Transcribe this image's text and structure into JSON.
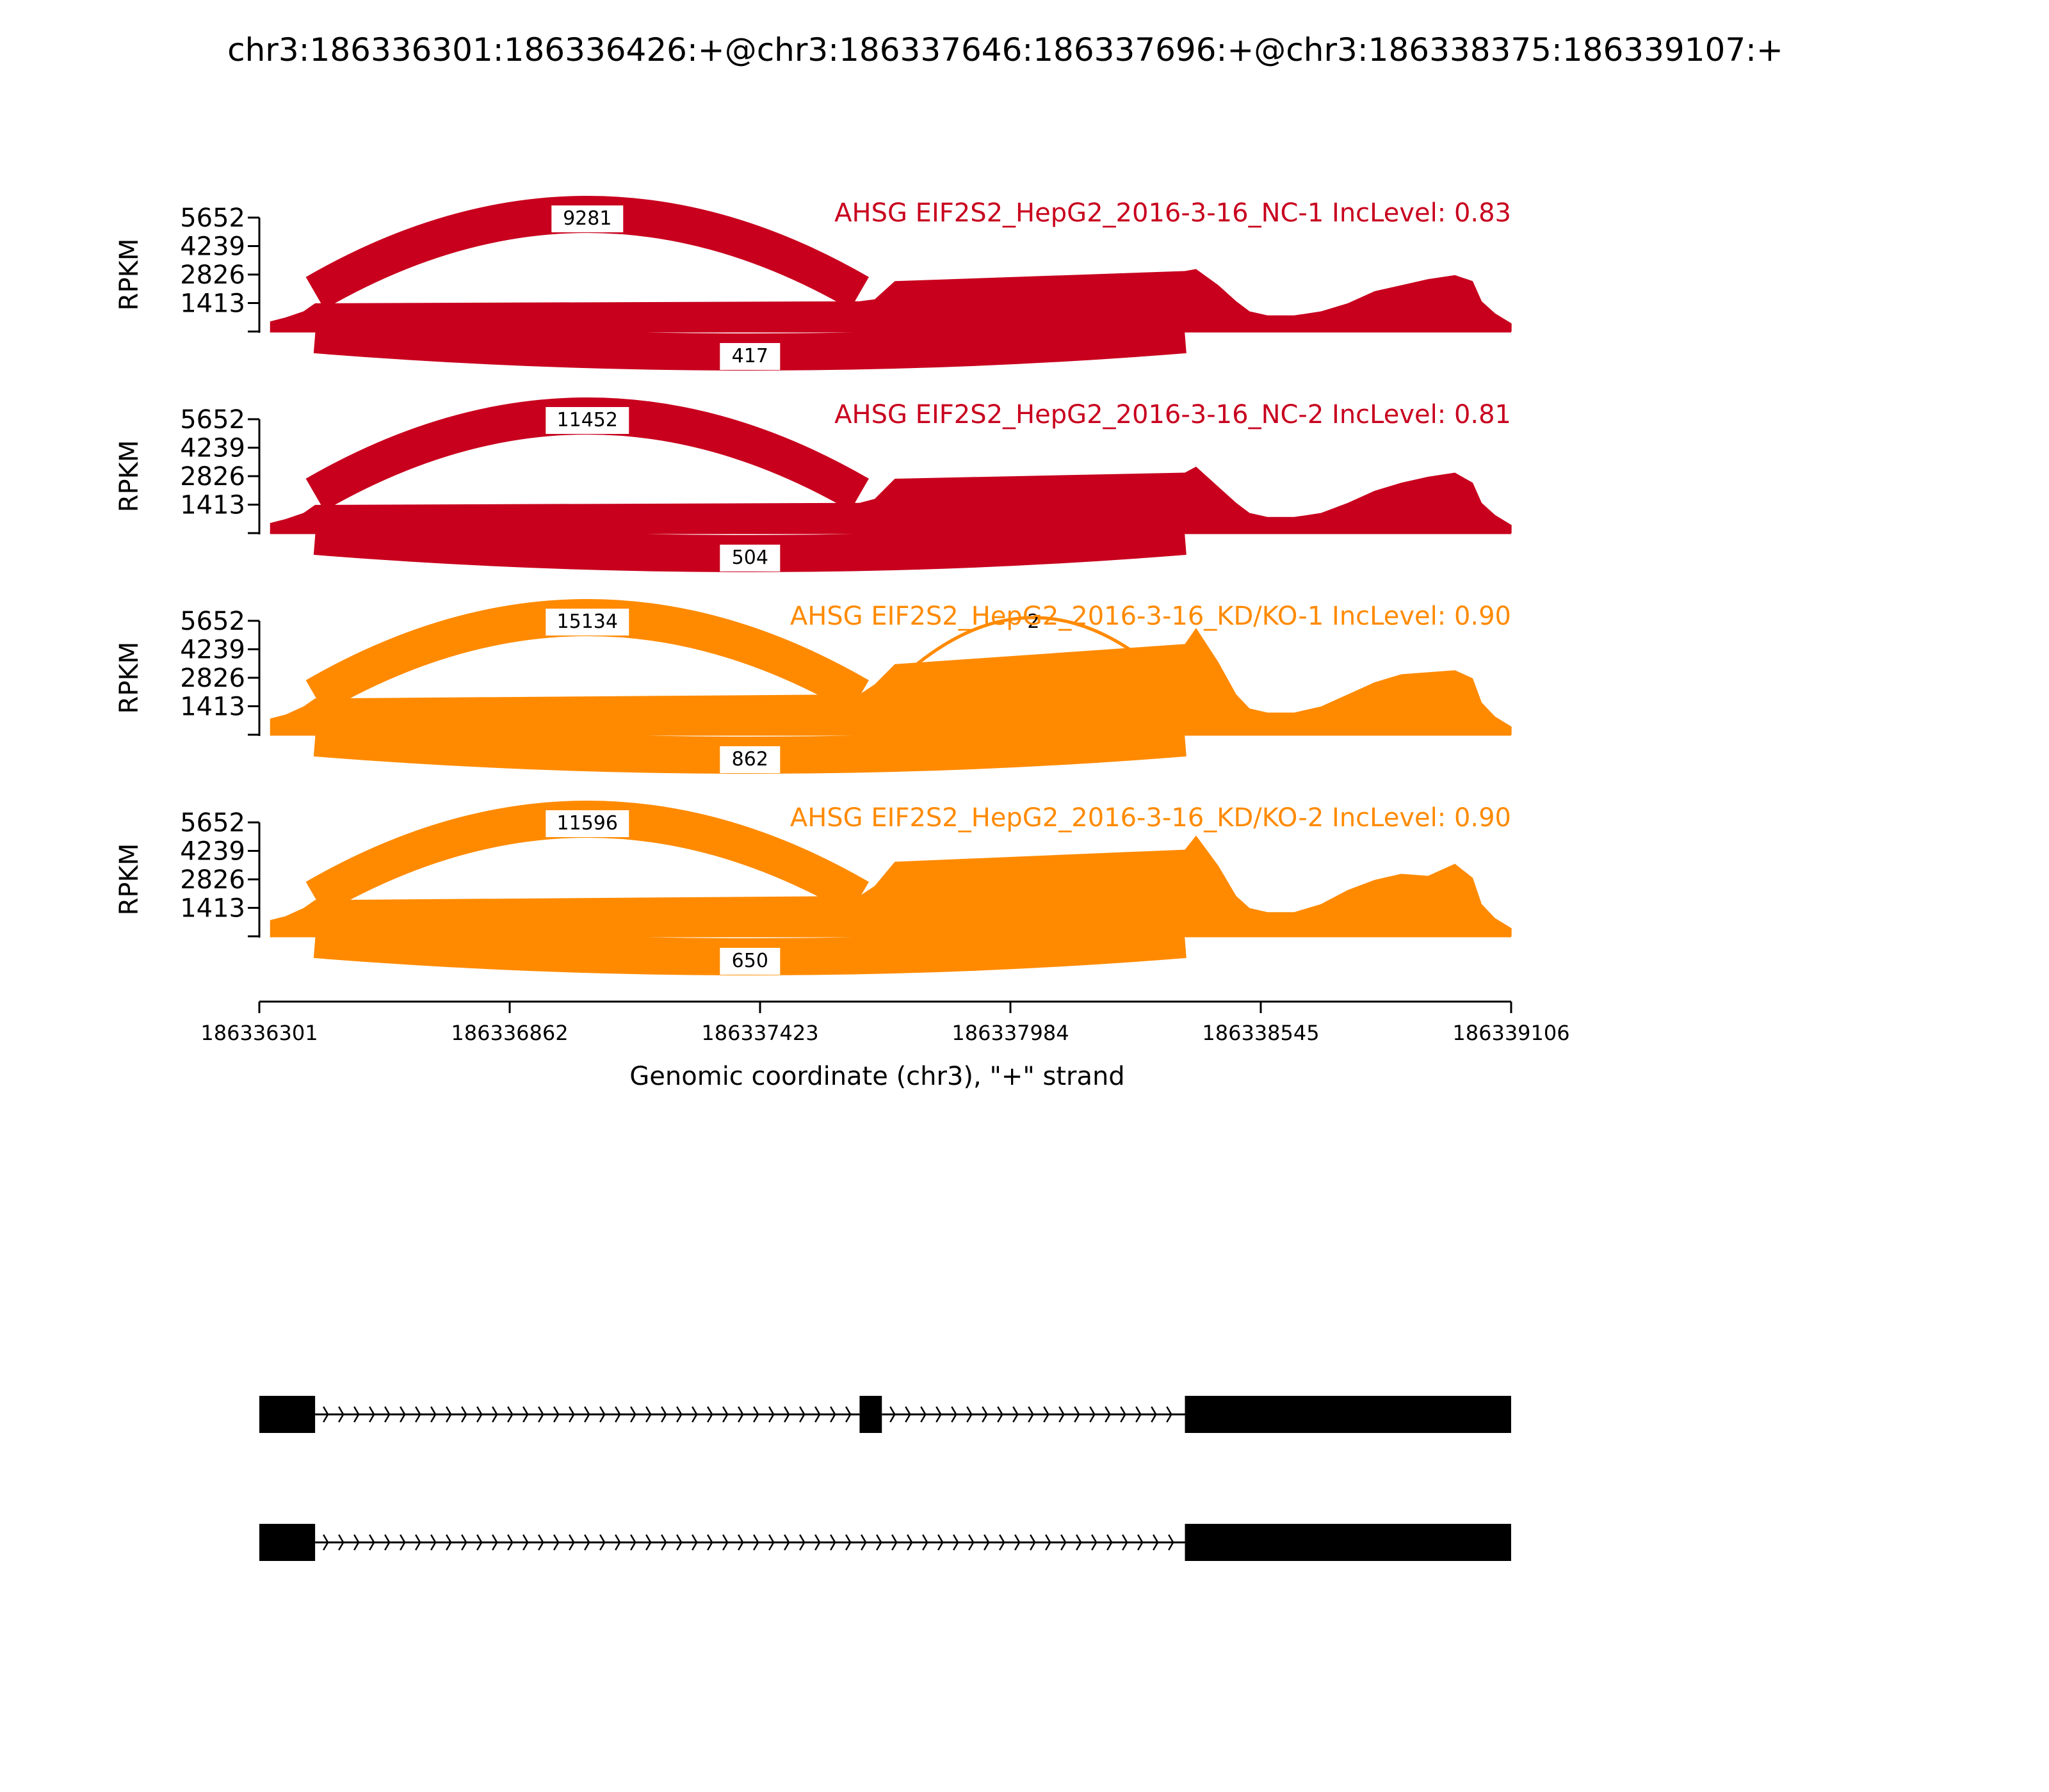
{
  "title": "chr3:186336301:186336426:+@chr3:186337646:186337696:+@chr3:186338375:186339107:+",
  "colors": {
    "nc": "#c8001e",
    "kd": "#ff8a00",
    "axis": "#000000"
  },
  "chart_data": {
    "type": "area",
    "xlabel": "Genomic coordinate (chr3), \"+\" strand",
    "ylabel": "RPKM",
    "xlim": [
      186336301,
      186339106
    ],
    "x_ticks": [
      "186336301",
      "186336862",
      "186337423",
      "186337984",
      "186338545",
      "186339106"
    ],
    "ylim": [
      0,
      5652
    ],
    "y_ticks": [
      "1413",
      "2826",
      "4239",
      "5652"
    ],
    "exons": [
      {
        "start": 186336301,
        "end": 186336426
      },
      {
        "start": 186337646,
        "end": 186337696
      },
      {
        "start": 186338375,
        "end": 186339107
      }
    ],
    "tracks": [
      {
        "label": "AHSG EIF2S2_HepG2_2016-3-16_NC-1 IncLevel: 0.83",
        "color_key": "nc",
        "coverage": [
          [
            186336325,
            500
          ],
          [
            186336360,
            700
          ],
          [
            186336400,
            1000
          ],
          [
            186336426,
            1400
          ],
          [
            186337646,
            1500
          ],
          [
            186337680,
            1600
          ],
          [
            186337725,
            2500
          ],
          [
            186338375,
            3000
          ],
          [
            186338400,
            3100
          ],
          [
            186338450,
            2300
          ],
          [
            186338490,
            1500
          ],
          [
            186338520,
            1000
          ],
          [
            186338560,
            800
          ],
          [
            186338620,
            800
          ],
          [
            186338680,
            1000
          ],
          [
            186338740,
            1400
          ],
          [
            186338800,
            2000
          ],
          [
            186338860,
            2300
          ],
          [
            186338920,
            2600
          ],
          [
            186338980,
            2800
          ],
          [
            186339020,
            2500
          ],
          [
            186339040,
            1500
          ],
          [
            186339070,
            900
          ],
          [
            186339107,
            400
          ]
        ],
        "junctions": [
          {
            "from": 186336426,
            "to": 186337646,
            "count": "9281",
            "above": true
          },
          {
            "from": 186336426,
            "to": 186338375,
            "count": "417",
            "above": false
          }
        ]
      },
      {
        "label": "AHSG EIF2S2_HepG2_2016-3-16_NC-2 IncLevel: 0.81",
        "color_key": "nc",
        "coverage": [
          [
            186336325,
            500
          ],
          [
            186336360,
            700
          ],
          [
            186336400,
            1000
          ],
          [
            186336426,
            1400
          ],
          [
            186337646,
            1500
          ],
          [
            186337680,
            1700
          ],
          [
            186337725,
            2700
          ],
          [
            186338375,
            3000
          ],
          [
            186338400,
            3300
          ],
          [
            186338450,
            2300
          ],
          [
            186338490,
            1500
          ],
          [
            186338520,
            1000
          ],
          [
            186338560,
            800
          ],
          [
            186338620,
            800
          ],
          [
            186338680,
            1000
          ],
          [
            186338740,
            1500
          ],
          [
            186338800,
            2100
          ],
          [
            186338860,
            2500
          ],
          [
            186338920,
            2800
          ],
          [
            186338980,
            3000
          ],
          [
            186339020,
            2500
          ],
          [
            186339040,
            1500
          ],
          [
            186339070,
            900
          ],
          [
            186339107,
            400
          ]
        ],
        "junctions": [
          {
            "from": 186336426,
            "to": 186337646,
            "count": "11452",
            "above": true
          },
          {
            "from": 186336426,
            "to": 186338375,
            "count": "504",
            "above": false
          }
        ]
      },
      {
        "label": "AHSG EIF2S2_HepG2_2016-3-16_KD/KO-1 IncLevel: 0.90",
        "color_key": "kd",
        "coverage": [
          [
            186336325,
            800
          ],
          [
            186336360,
            1000
          ],
          [
            186336400,
            1400
          ],
          [
            186336426,
            1800
          ],
          [
            186337646,
            2000
          ],
          [
            186337680,
            2500
          ],
          [
            186337725,
            3500
          ],
          [
            186338375,
            4500
          ],
          [
            186338400,
            5300
          ],
          [
            186338450,
            3600
          ],
          [
            186338490,
            2000
          ],
          [
            186338520,
            1300
          ],
          [
            186338560,
            1100
          ],
          [
            186338620,
            1100
          ],
          [
            186338680,
            1400
          ],
          [
            186338740,
            2000
          ],
          [
            186338800,
            2600
          ],
          [
            186338860,
            3000
          ],
          [
            186338920,
            3100
          ],
          [
            186338980,
            3200
          ],
          [
            186339020,
            2800
          ],
          [
            186339040,
            1600
          ],
          [
            186339070,
            900
          ],
          [
            186339107,
            400
          ]
        ],
        "junctions": [
          {
            "from": 186336426,
            "to": 186337646,
            "count": "15134",
            "above": true
          },
          {
            "from": 186337696,
            "to": 186338375,
            "count": "2",
            "above": true
          },
          {
            "from": 186336426,
            "to": 186338375,
            "count": "862",
            "above": false
          }
        ]
      },
      {
        "label": "AHSG EIF2S2_HepG2_2016-3-16_KD/KO-2 IncLevel: 0.90",
        "color_key": "kd",
        "coverage": [
          [
            186336325,
            800
          ],
          [
            186336360,
            1000
          ],
          [
            186336400,
            1400
          ],
          [
            186336426,
            1800
          ],
          [
            186337646,
            2000
          ],
          [
            186337680,
            2500
          ],
          [
            186337725,
            3700
          ],
          [
            186338375,
            4300
          ],
          [
            186338400,
            5000
          ],
          [
            186338450,
            3500
          ],
          [
            186338490,
            2000
          ],
          [
            186338520,
            1400
          ],
          [
            186338560,
            1200
          ],
          [
            186338620,
            1200
          ],
          [
            186338680,
            1600
          ],
          [
            186338740,
            2300
          ],
          [
            186338800,
            2800
          ],
          [
            186338860,
            3100
          ],
          [
            186338920,
            3000
          ],
          [
            186338980,
            3600
          ],
          [
            186339020,
            2900
          ],
          [
            186339040,
            1600
          ],
          [
            186339070,
            900
          ],
          [
            186339107,
            400
          ]
        ],
        "junctions": [
          {
            "from": 186336426,
            "to": 186337646,
            "count": "11596",
            "above": true
          },
          {
            "from": 186336426,
            "to": 186338375,
            "count": "650",
            "above": false
          }
        ]
      }
    ],
    "isoforms": [
      {
        "exons": [
          [
            186336301,
            186336426
          ],
          [
            186337646,
            186337696
          ],
          [
            186338375,
            186339107
          ]
        ]
      },
      {
        "exons": [
          [
            186336301,
            186336426
          ],
          [
            186338375,
            186339107
          ]
        ]
      }
    ]
  }
}
